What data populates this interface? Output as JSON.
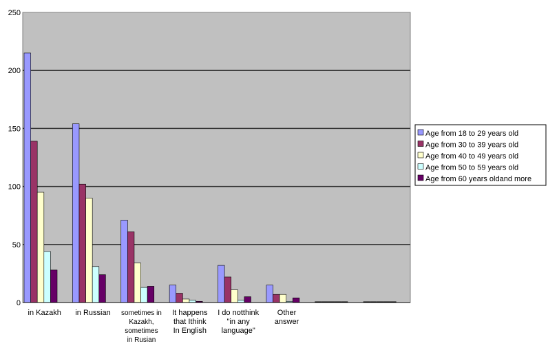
{
  "chart_data": {
    "type": "bar",
    "ylim": [
      0,
      250
    ],
    "yticks": [
      "0",
      "50",
      "100",
      "150",
      "200",
      "250"
    ],
    "grid": true,
    "legend_position": "right",
    "plot_background": "#c0c0c0",
    "categories": [
      [
        "in Kazakh"
      ],
      [
        "in Russian"
      ],
      [
        "sometimes in",
        "Kazakh,",
        "sometimes",
        "in Rusian"
      ],
      [
        "It happens",
        "that Ithink",
        "In English"
      ],
      [
        "I do notthink",
        "\"in any",
        "language\""
      ],
      [
        "Other",
        "answer"
      ],
      [
        ""
      ],
      [
        ""
      ]
    ],
    "series": [
      {
        "name": "Age from 18 to 29 years old",
        "color": "#9999ff",
        "values": [
          215,
          154,
          71,
          15,
          32,
          15,
          0,
          0
        ]
      },
      {
        "name": "Age from 30 to 39 years old",
        "color": "#993366",
        "values": [
          139,
          102,
          61,
          8,
          22,
          7,
          0,
          0
        ]
      },
      {
        "name": "Age from 40 to 49 years old",
        "color": "#ffffcc",
        "values": [
          95,
          90,
          34,
          3,
          11,
          7,
          0,
          0
        ]
      },
      {
        "name": "Age from 50 to 59 years old",
        "color": "#ccffff",
        "values": [
          44,
          31,
          13,
          2,
          2,
          1,
          0,
          0
        ]
      },
      {
        "name": "Age from 60 years oldand more",
        "color": "#660066",
        "values": [
          28,
          24,
          14,
          1,
          5,
          4,
          0,
          0
        ]
      }
    ]
  }
}
